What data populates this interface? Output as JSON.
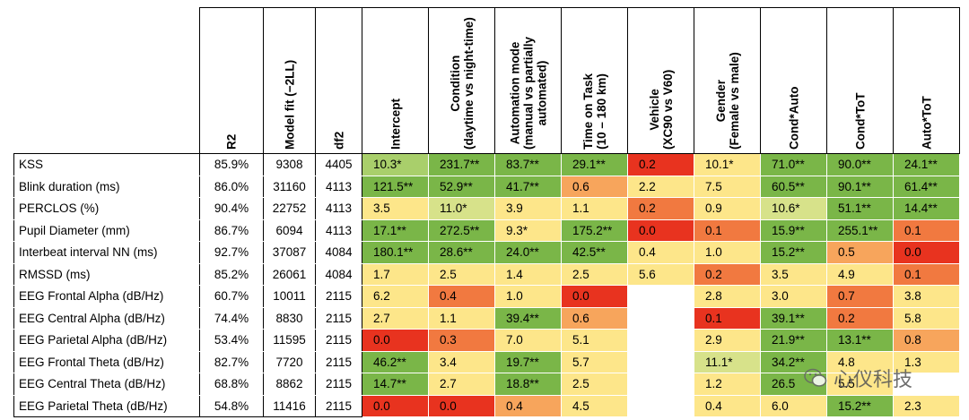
{
  "headers": {
    "r2": "R2",
    "model_fit": "Model fit (−2LL)",
    "df2": "df2",
    "effects": [
      {
        "lines": [
          "Intercept"
        ]
      },
      {
        "lines": [
          "Condition",
          "(daytime vs night-time)"
        ]
      },
      {
        "lines": [
          "Automation mode",
          "(manual vs partially",
          "automated)"
        ]
      },
      {
        "lines": [
          "Time on Task",
          "(10 – 180 km)"
        ]
      },
      {
        "lines": [
          "Vehicle",
          "(XC90 vs V60)"
        ]
      },
      {
        "lines": [
          "Gender",
          "(Female vs male)"
        ]
      },
      {
        "lines": [
          "Cond*Auto"
        ]
      },
      {
        "lines": [
          "Cond*ToT"
        ]
      },
      {
        "lines": [
          "Auto*ToT"
        ]
      }
    ]
  },
  "colors": {
    "G": "#7ab648",
    "g": "#a9cf6b",
    "l": "#d7e28a",
    "y": "#fde68a",
    "o": "#f7a55c",
    "O": "#f17940",
    "R": "#e8331f",
    "W": "#ffffff"
  },
  "rows": [
    {
      "label": "KSS",
      "r2": "85.9%",
      "fit": "9308",
      "df2": "4405",
      "cells": [
        [
          "10.3*",
          "g"
        ],
        [
          "231.7**",
          "G"
        ],
        [
          "83.7**",
          "G"
        ],
        [
          "29.1**",
          "G"
        ],
        [
          "0.2",
          "R"
        ],
        [
          "10.1*",
          "y"
        ],
        [
          "71.0**",
          "G"
        ],
        [
          "90.0**",
          "G"
        ],
        [
          "24.1**",
          "G"
        ]
      ]
    },
    {
      "label": "Blink duration (ms)",
      "r2": "86.0%",
      "fit": "31160",
      "df2": "4113",
      "cells": [
        [
          "121.5**",
          "G"
        ],
        [
          "52.9**",
          "G"
        ],
        [
          "41.7**",
          "G"
        ],
        [
          "0.6",
          "o"
        ],
        [
          "2.2",
          "y"
        ],
        [
          "7.5",
          "y"
        ],
        [
          "60.5**",
          "G"
        ],
        [
          "90.1**",
          "G"
        ],
        [
          "61.4**",
          "G"
        ]
      ]
    },
    {
      "label": "PERCLOS (%)",
      "r2": "90.4%",
      "fit": "22752",
      "df2": "4113",
      "cells": [
        [
          "3.5",
          "y"
        ],
        [
          "11.0*",
          "l"
        ],
        [
          "3.9",
          "y"
        ],
        [
          "1.1",
          "y"
        ],
        [
          "0.2",
          "O"
        ],
        [
          "0.9",
          "y"
        ],
        [
          "10.6*",
          "l"
        ],
        [
          "51.1**",
          "G"
        ],
        [
          "14.4**",
          "G"
        ]
      ]
    },
    {
      "label": "Pupil Diameter (mm)",
      "r2": "86.7%",
      "fit": "6094",
      "df2": "4113",
      "cells": [
        [
          "17.1**",
          "G"
        ],
        [
          "272.5**",
          "G"
        ],
        [
          "9.3*",
          "y"
        ],
        [
          "175.2**",
          "G"
        ],
        [
          "0.0",
          "R"
        ],
        [
          "0.1",
          "O"
        ],
        [
          "15.9**",
          "G"
        ],
        [
          "255.1**",
          "G"
        ],
        [
          "0.1",
          "O"
        ]
      ]
    },
    {
      "label": "Interbeat interval NN (ms)",
      "r2": "92.7%",
      "fit": "37087",
      "df2": "4084",
      "cells": [
        [
          "180.1**",
          "G"
        ],
        [
          "28.6**",
          "G"
        ],
        [
          "24.0**",
          "G"
        ],
        [
          "42.5**",
          "G"
        ],
        [
          "0.4",
          "y"
        ],
        [
          "1.0",
          "y"
        ],
        [
          "15.2**",
          "G"
        ],
        [
          "0.5",
          "o"
        ],
        [
          "0.0",
          "R"
        ]
      ]
    },
    {
      "label": "RMSSD (ms)",
      "r2": "85.2%",
      "fit": "26061",
      "df2": "4084",
      "cells": [
        [
          "1.7",
          "y"
        ],
        [
          "2.5",
          "y"
        ],
        [
          "1.4",
          "y"
        ],
        [
          "2.5",
          "y"
        ],
        [
          "5.6",
          "y"
        ],
        [
          "0.2",
          "O"
        ],
        [
          "3.5",
          "y"
        ],
        [
          "4.9",
          "y"
        ],
        [
          "0.1",
          "O"
        ]
      ]
    },
    {
      "label": "EEG Frontal Alpha (dB/Hz)",
      "r2": "60.7%",
      "fit": "10011",
      "df2": "2115",
      "cells": [
        [
          "6.2",
          "y"
        ],
        [
          "0.4",
          "O"
        ],
        [
          "1.0",
          "y"
        ],
        [
          "0.0",
          "R"
        ],
        [
          "",
          "W"
        ],
        [
          "2.8",
          "y"
        ],
        [
          "3.0",
          "y"
        ],
        [
          "0.7",
          "O"
        ],
        [
          "3.8",
          "y"
        ]
      ]
    },
    {
      "label": "EEG Central Alpha (dB/Hz)",
      "r2": "74.4%",
      "fit": "8830",
      "df2": "2115",
      "cells": [
        [
          "2.7",
          "y"
        ],
        [
          "1.1",
          "y"
        ],
        [
          "39.4**",
          "G"
        ],
        [
          "0.6",
          "o"
        ],
        [
          "",
          "W"
        ],
        [
          "0.1",
          "R"
        ],
        [
          "39.1**",
          "G"
        ],
        [
          "0.2",
          "O"
        ],
        [
          "5.8",
          "y"
        ]
      ]
    },
    {
      "label": "EEG Parietal Alpha (dB/Hz)",
      "r2": "53.4%",
      "fit": "11595",
      "df2": "2115",
      "cells": [
        [
          "0.0",
          "R"
        ],
        [
          "0.3",
          "O"
        ],
        [
          "7.0",
          "y"
        ],
        [
          "5.1",
          "y"
        ],
        [
          "",
          "W"
        ],
        [
          "2.9",
          "y"
        ],
        [
          "21.9**",
          "G"
        ],
        [
          "13.1**",
          "G"
        ],
        [
          "0.8",
          "o"
        ]
      ]
    },
    {
      "label": "EEG Frontal Theta (dB/Hz)",
      "r2": "82.7%",
      "fit": "7720",
      "df2": "2115",
      "cells": [
        [
          "46.2**",
          "G"
        ],
        [
          "3.4",
          "y"
        ],
        [
          "19.7**",
          "G"
        ],
        [
          "5.7",
          "y"
        ],
        [
          "",
          "W"
        ],
        [
          "11.1*",
          "l"
        ],
        [
          "34.2**",
          "G"
        ],
        [
          "4.8",
          "y"
        ],
        [
          "1.3",
          "y"
        ]
      ]
    },
    {
      "label": "EEG Central Theta (dB/Hz)",
      "r2": "68.8%",
      "fit": "8862",
      "df2": "2115",
      "cells": [
        [
          "14.7**",
          "G"
        ],
        [
          "2.7",
          "y"
        ],
        [
          "18.8**",
          "G"
        ],
        [
          "2.5",
          "y"
        ],
        [
          "",
          "W"
        ],
        [
          "1.2",
          "y"
        ],
        [
          "26.5",
          "G"
        ],
        [
          "5.5",
          "y"
        ],
        [
          "",
          ""
        ]
      ]
    },
    {
      "label": "EEG Parietal Theta (dB/Hz)",
      "r2": "54.8%",
      "fit": "11416",
      "df2": "2115",
      "cells": [
        [
          "0.0",
          "R"
        ],
        [
          "0.0",
          "R"
        ],
        [
          "0.4",
          "o"
        ],
        [
          "4.5",
          "y"
        ],
        [
          "",
          "W"
        ],
        [
          "0.4",
          "y"
        ],
        [
          "6.0",
          "y"
        ],
        [
          "15.2**",
          "G"
        ],
        [
          "2.3",
          "y"
        ]
      ]
    }
  ],
  "watermark": "心仪科技"
}
